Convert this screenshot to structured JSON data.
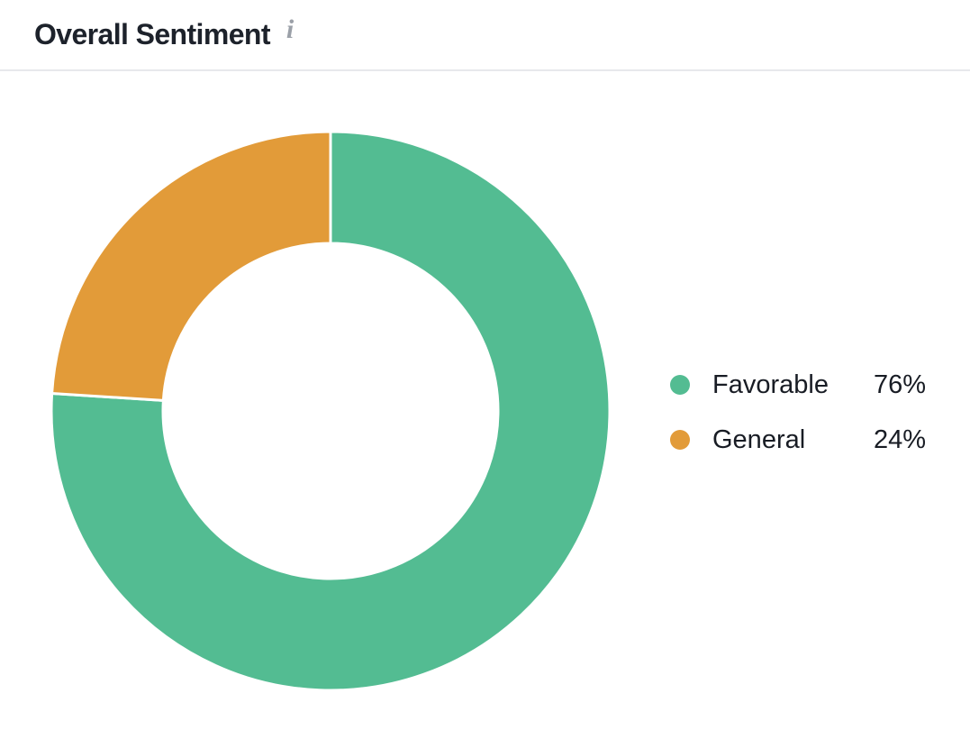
{
  "header": {
    "title": "Overall Sentiment",
    "info_icon_glyph": "i"
  },
  "chart_data": {
    "type": "pie",
    "variant": "donut",
    "title": "Overall Sentiment",
    "categories": [
      "Favorable",
      "General"
    ],
    "values": [
      76,
      24
    ],
    "unit": "%",
    "colors": [
      "#53bc92",
      "#e29b39"
    ],
    "start_angle_deg": 0,
    "direction": "clockwise",
    "inner_radius_ratio": 0.6,
    "slice_separator_color": "#ffffff",
    "legend_position": "right"
  },
  "legend": {
    "items": [
      {
        "label": "Favorable",
        "value": "76%",
        "color": "#53bc92"
      },
      {
        "label": "General",
        "value": "24%",
        "color": "#e29b39"
      }
    ]
  },
  "theme": {
    "background": "#ffffff",
    "title_color": "#1d222b",
    "text_color": "#181c24",
    "info_icon_color": "#9ba0a8",
    "divider_color": "#e7e8ec"
  }
}
